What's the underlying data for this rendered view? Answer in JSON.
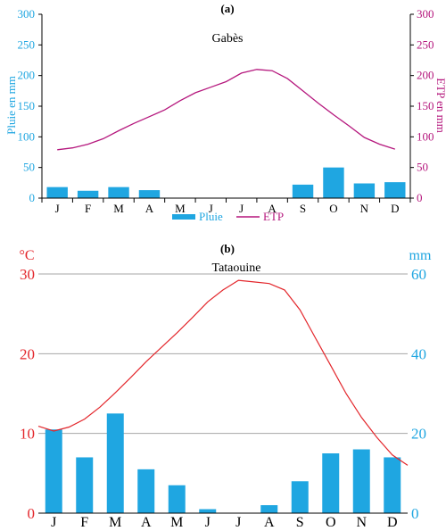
{
  "colors": {
    "rain": "#1fa6e1",
    "etp": "#b5177d",
    "temperature": "#e3262b",
    "axis": "#000000",
    "grid": "#a6a6a6"
  },
  "chart_data": [
    {
      "type": "bar+line",
      "panel_label": "(a)",
      "title": "Gabès",
      "categories": [
        "J",
        "F",
        "M",
        "A",
        "M",
        "J",
        "J",
        "A",
        "S",
        "O",
        "N",
        "D"
      ],
      "ylabel_left": "Pluie en mm",
      "ylabel_right": "ETP en mm",
      "ylim_left": [
        0,
        300
      ],
      "ylim_right": [
        0,
        300
      ],
      "yticks_left": [
        "0",
        "50",
        "100",
        "150",
        "200",
        "250",
        "300"
      ],
      "yticks_right": [
        "0",
        "50",
        "100",
        "150",
        "200",
        "250",
        "300"
      ],
      "grid": false,
      "legend_position": "bottom-center",
      "series": [
        {
          "name": "Pluie",
          "kind": "bar",
          "axis": "left",
          "values": [
            18,
            12,
            18,
            13,
            0,
            0,
            0,
            0,
            22,
            50,
            24,
            26
          ]
        },
        {
          "name": "ETP",
          "kind": "line",
          "axis": "right",
          "x": [
            0,
            0.5,
            1,
            1.5,
            2,
            2.5,
            3,
            3.5,
            4,
            4.5,
            5,
            5.5,
            6,
            6.5,
            7,
            7.5,
            8,
            8.5,
            9,
            9.5,
            10,
            10.5,
            11
          ],
          "values": [
            79,
            82,
            88,
            97,
            110,
            122,
            133,
            144,
            159,
            172,
            181,
            190,
            204,
            210,
            208,
            195,
            175,
            155,
            136,
            118,
            99,
            88,
            80
          ]
        }
      ]
    },
    {
      "type": "bar+line",
      "panel_label": "(b)",
      "title": "Tataouine",
      "categories": [
        "J",
        "F",
        "M",
        "A",
        "M",
        "J",
        "J",
        "A",
        "S",
        "O",
        "N",
        "D"
      ],
      "ylabel_left": "°C",
      "ylabel_right": "mm",
      "ylim_left": [
        0,
        30
      ],
      "ylim_right": [
        0,
        60
      ],
      "yticks_left": [
        "0",
        "10",
        "20",
        "30"
      ],
      "yticks_right": [
        "0",
        "20",
        "40",
        "60"
      ],
      "grid": true,
      "series": [
        {
          "kind": "bar",
          "axis": "right",
          "values": [
            21,
            14,
            25,
            11,
            7,
            1,
            0,
            2,
            8,
            15,
            16,
            14
          ]
        },
        {
          "kind": "line",
          "axis": "left",
          "x": [
            -0.5,
            0,
            0.5,
            1,
            1.5,
            2,
            2.5,
            3,
            3.5,
            4,
            4.5,
            5,
            5.5,
            6,
            6.5,
            7,
            7.5,
            8,
            8.5,
            9,
            9.5,
            10,
            10.5,
            11,
            11.5
          ],
          "values": [
            10.9,
            10.3,
            10.8,
            11.8,
            13.3,
            15.1,
            17.0,
            19.0,
            20.8,
            22.6,
            24.5,
            26.5,
            28.0,
            29.2,
            29.0,
            28.8,
            28.0,
            25.5,
            22.0,
            18.5,
            15.0,
            12.0,
            9.5,
            7.3,
            6.0
          ]
        }
      ]
    }
  ]
}
